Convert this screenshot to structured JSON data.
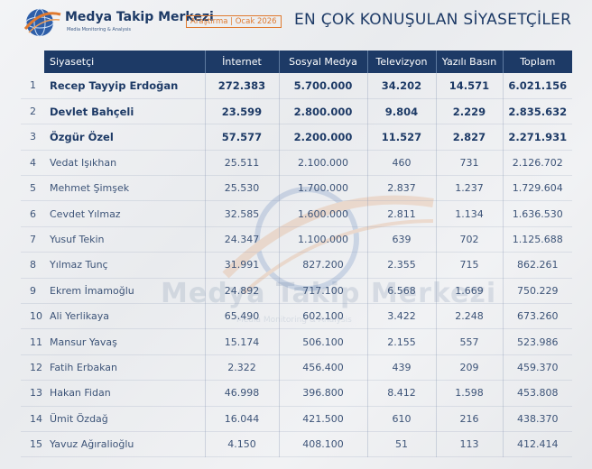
{
  "header": {
    "brand_name": "Medya Takip Merkezi",
    "brand_sub": "Media Monitoring & Analysis",
    "tag": "Araştırma | Ocak 2026",
    "title": "EN ÇOK KONUŞULAN SİYASETÇİLER",
    "logo_icon": "globe-swoosh-icon"
  },
  "watermark": {
    "text": "Medya Takip Merkezi",
    "sub": "Media Monitoring & Analysis",
    "mark": "NTM"
  },
  "colors": {
    "navy": "#1d3a66",
    "accent": "#e07a2f",
    "text": "#3d5478"
  },
  "chart_data": {
    "type": "table",
    "title": "EN ÇOK KONUŞULAN SİYASETÇİLER",
    "columns": [
      "",
      "Siyasetçi",
      "İnternet",
      "Sosyal Medya",
      "Televizyon",
      "Yazılı Basın",
      "Toplam"
    ],
    "rows": [
      [
        "1",
        "Recep Tayyip Erdoğan",
        "272.383",
        "5.700.000",
        "34.202",
        "14.571",
        "6.021.156"
      ],
      [
        "2",
        "Devlet Bahçeli",
        "23.599",
        "2.800.000",
        "9.804",
        "2.229",
        "2.835.632"
      ],
      [
        "3",
        "Özgür Özel",
        "57.577",
        "2.200.000",
        "11.527",
        "2.827",
        "2.271.931"
      ],
      [
        "4",
        "Vedat Işıkhan",
        "25.511",
        "2.100.000",
        "460",
        "731",
        "2.126.702"
      ],
      [
        "5",
        "Mehmet Şimşek",
        "25.530",
        "1.700.000",
        "2.837",
        "1.237",
        "1.729.604"
      ],
      [
        "6",
        "Cevdet Yılmaz",
        "32.585",
        "1.600.000",
        "2.811",
        "1.134",
        "1.636.530"
      ],
      [
        "7",
        "Yusuf Tekin",
        "24.347",
        "1.100.000",
        "639",
        "702",
        "1.125.688"
      ],
      [
        "8",
        "Yılmaz Tunç",
        "31.991",
        "827.200",
        "2.355",
        "715",
        "862.261"
      ],
      [
        "9",
        "Ekrem İmamoğlu",
        "24.892",
        "717.100",
        "6.568",
        "1.669",
        "750.229"
      ],
      [
        "10",
        "Ali Yerlikaya",
        "65.490",
        "602.100",
        "3.422",
        "2.248",
        "673.260"
      ],
      [
        "11",
        "Mansur Yavaş",
        "15.174",
        "506.100",
        "2.155",
        "557",
        "523.986"
      ],
      [
        "12",
        "Fatih Erbakan",
        "2.322",
        "456.400",
        "439",
        "209",
        "459.370"
      ],
      [
        "13",
        "Hakan Fidan",
        "46.998",
        "396.800",
        "8.412",
        "1.598",
        "453.808"
      ],
      [
        "14",
        "Ümit Özdağ",
        "16.044",
        "421.500",
        "610",
        "216",
        "438.370"
      ],
      [
        "15",
        "Yavuz Ağıralioğlu",
        "4.150",
        "408.100",
        "51",
        "113",
        "412.414"
      ]
    ],
    "bold_rows": 3
  }
}
